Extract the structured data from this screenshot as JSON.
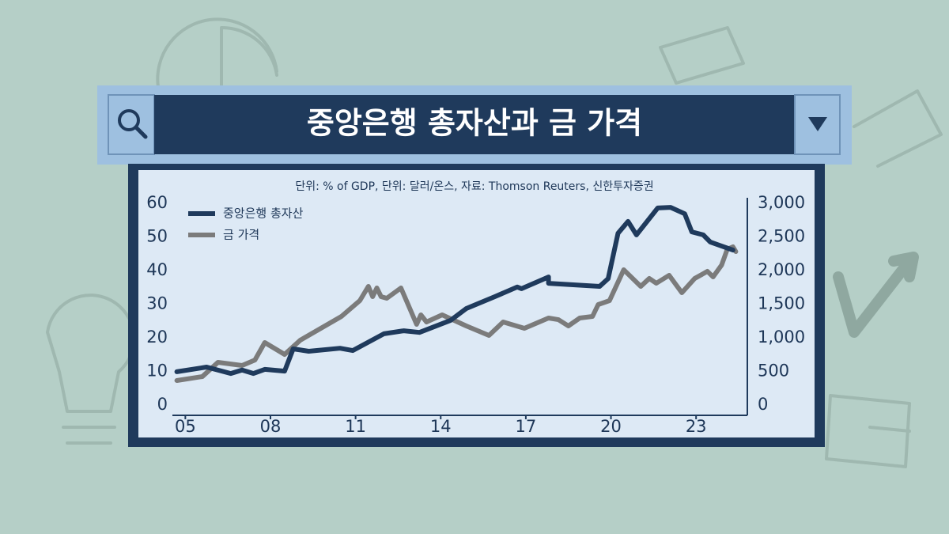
{
  "chart_data": {
    "type": "line",
    "title": "중앙은행 총자산과 금 가격",
    "subtitle": "단위:  % of GDP, 단위: 달러/온스, 자료: Thomson Reuters, 신한투자증권",
    "xlim": [
      2004.6,
      2024.5
    ],
    "xticks": [
      {
        "value": 2005,
        "label": "05"
      },
      {
        "value": 2008,
        "label": "08"
      },
      {
        "value": 2011,
        "label": "11"
      },
      {
        "value": 2014,
        "label": "14"
      },
      {
        "value": 2017,
        "label": "17"
      },
      {
        "value": 2020,
        "label": "20"
      },
      {
        "value": 2023,
        "label": "23"
      }
    ],
    "ylim": [
      0,
      60
    ],
    "yticks": [
      0,
      10,
      20,
      30,
      40,
      50,
      60
    ],
    "y2lim": [
      0,
      3000
    ],
    "y2ticks": [
      0,
      500,
      {
        "value": 1000,
        "label": "1,000"
      },
      {
        "value": 1500,
        "label": "1,500"
      },
      {
        "value": 2000,
        "label": "2,000"
      },
      {
        "value": 2500,
        "label": "2,500"
      },
      {
        "value": 3000,
        "label": "3,000"
      }
    ],
    "grid": false,
    "legend": "upper left",
    "series": [
      {
        "name": "중앙은행 총자산",
        "color": "#1f3a5c",
        "axis": "y",
        "x": [
          2004.7,
          2005.75,
          2006.6,
          2007.0,
          2007.4,
          2007.8,
          2008.5,
          2008.8,
          2009.35,
          2010.45,
          2010.9,
          2012.0,
          2012.7,
          2013.25,
          2014.35,
          2014.9,
          2015.9,
          2016.7,
          2016.85,
          2017.8,
          2017.8,
          2019.6,
          2019.9,
          2020.25,
          2020.6,
          2020.9,
          2021.65,
          2022.1,
          2022.6,
          2022.85,
          2023.25,
          2023.5,
          2024.2,
          2024.3
        ],
        "values": [
          9.9,
          11.3,
          9.4,
          10.4,
          9.4,
          10.6,
          10.1,
          16.7,
          16.0,
          16.9,
          16.2,
          21.2,
          22.1,
          21.6,
          25.2,
          28.7,
          32.2,
          35.1,
          34.6,
          38.1,
          36.2,
          35.3,
          37.6,
          51.1,
          54.6,
          50.6,
          58.6,
          58.8,
          56.9,
          51.5,
          50.6,
          48.5,
          46.4,
          46.1
        ]
      },
      {
        "name": "금 가격",
        "color": "#7b7b7b",
        "axis": "y2",
        "x": [
          2004.7,
          2005.6,
          2006.15,
          2007.0,
          2007.45,
          2007.8,
          2008.5,
          2009.05,
          2010.5,
          2011.15,
          2011.45,
          2011.6,
          2011.75,
          2011.9,
          2012.1,
          2012.6,
          2013.15,
          2013.3,
          2013.5,
          2014.05,
          2014.9,
          2015.7,
          2016.2,
          2016.95,
          2017.8,
          2018.15,
          2018.5,
          2018.9,
          2019.35,
          2019.55,
          2019.95,
          2020.45,
          2021.05,
          2021.35,
          2021.6,
          2022.05,
          2022.5,
          2022.95,
          2023.4,
          2023.6,
          2023.9,
          2024.1,
          2024.3,
          2024.4
        ],
        "values": [
          365,
          424,
          635,
          588,
          670,
          929,
          753,
          965,
          1318,
          1553,
          1765,
          1612,
          1741,
          1612,
          1588,
          1741,
          1200,
          1341,
          1235,
          1341,
          1176,
          1035,
          1235,
          1141,
          1294,
          1270,
          1176,
          1294,
          1318,
          1494,
          1553,
          2012,
          1765,
          1882,
          1812,
          1929,
          1671,
          1882,
          1988,
          1906,
          2082,
          2317,
          2353,
          2282
        ]
      }
    ]
  }
}
